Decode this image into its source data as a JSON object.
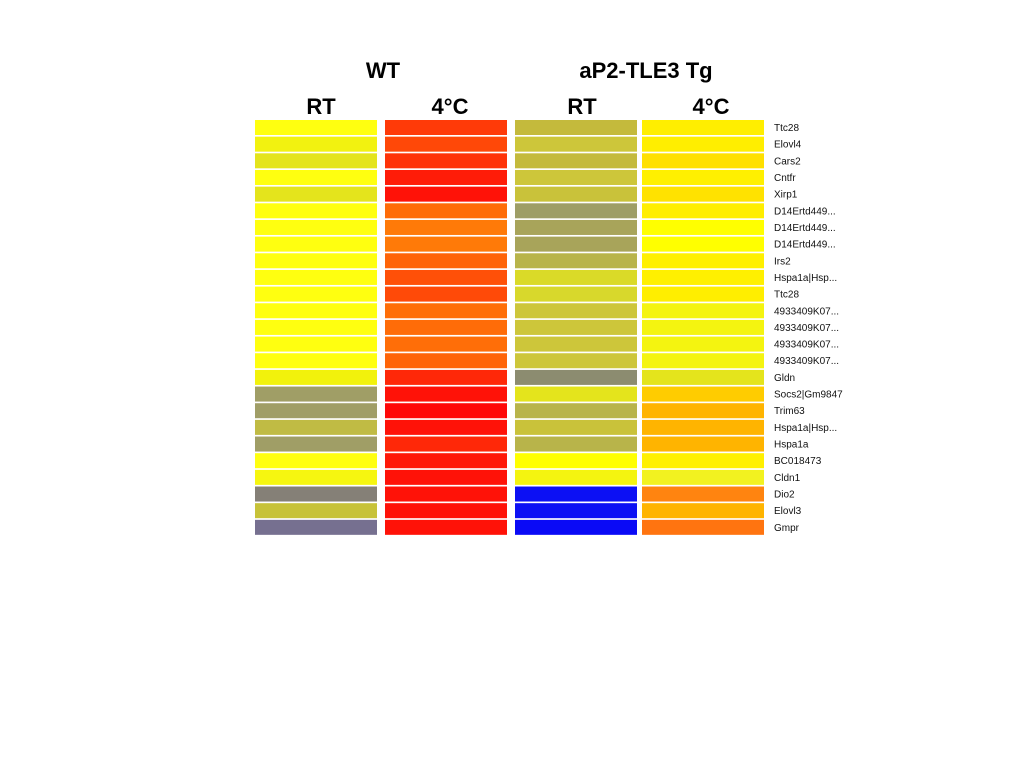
{
  "chart_data": {
    "type": "heatmap",
    "groups": [
      {
        "label": "WT",
        "columns": [
          0,
          1
        ]
      },
      {
        "label": "aP2-TLE3 Tg",
        "columns": [
          2,
          3
        ]
      }
    ],
    "columns": [
      "RT",
      "4°C",
      "RT",
      "4°C"
    ],
    "rows": [
      "Ttc28",
      "Elovl4",
      "Cars2",
      "Cntfr",
      "Xirp1",
      "D14Ertd449...",
      "D14Ertd449...",
      "D14Ertd449...",
      "Irs2",
      "Hspa1a|Hsp...",
      "Ttc28",
      "4933409K07...",
      "4933409K07...",
      "4933409K07...",
      "4933409K07...",
      "Gldn",
      "Socs2|Gm9847",
      "Trim63",
      "Hspa1a|Hsp...",
      "Hspa1a",
      "BC018473",
      "Cldn1",
      "Dio2",
      "Elovl3",
      "Gmpr"
    ],
    "cell_colors": [
      [
        "#ffff10",
        "#ff3a08",
        "#c4ba3c",
        "#ffee00"
      ],
      [
        "#f2f210",
        "#ff4808",
        "#cdc63a",
        "#ffee00"
      ],
      [
        "#e4e41c",
        "#ff3308",
        "#c4ba3c",
        "#ffe000"
      ],
      [
        "#ffff10",
        "#ff1c08",
        "#cdc63a",
        "#fff000"
      ],
      [
        "#e4e41c",
        "#ff1208",
        "#c9c23a",
        "#ffe200"
      ],
      [
        "#ffff10",
        "#ff6c08",
        "#9e9e66",
        "#ffee00"
      ],
      [
        "#ffff10",
        "#ff7a08",
        "#a8a45a",
        "#ffff00"
      ],
      [
        "#ffff10",
        "#ff7a08",
        "#a8a45a",
        "#ffff00"
      ],
      [
        "#ffff10",
        "#ff6408",
        "#b8b44a",
        "#fff000"
      ],
      [
        "#ffff10",
        "#ff5008",
        "#dada28",
        "#fff000"
      ],
      [
        "#ffff10",
        "#ff4a08",
        "#d8d82c",
        "#ffee00"
      ],
      [
        "#ffff10",
        "#ff6e08",
        "#cdc63a",
        "#f4f410"
      ],
      [
        "#ffff10",
        "#ff6c08",
        "#cdc63a",
        "#f4f410"
      ],
      [
        "#ffff10",
        "#ff6e08",
        "#cdc63a",
        "#f4f410"
      ],
      [
        "#ffff10",
        "#ff6408",
        "#cdc63a",
        "#f4f410"
      ],
      [
        "#f2f20c",
        "#ff2808",
        "#8c8c70",
        "#e4e41c"
      ],
      [
        "#a09e66",
        "#ff1208",
        "#e4e41c",
        "#ffcc00"
      ],
      [
        "#a09e66",
        "#ff0808",
        "#b8b44a",
        "#ffb400"
      ],
      [
        "#c0bb44",
        "#ff1208",
        "#c9c23a",
        "#ffb400"
      ],
      [
        "#a09e66",
        "#ff2808",
        "#b8b44a",
        "#ffb400"
      ],
      [
        "#ffff10",
        "#ff1808",
        "#ffff00",
        "#fff000"
      ],
      [
        "#f6f610",
        "#ff1208",
        "#f4f410",
        "#f2f220"
      ],
      [
        "#858077",
        "#ff1208",
        "#0c10f4",
        "#ff8410"
      ],
      [
        "#c7c238",
        "#ff1208",
        "#0c10f4",
        "#ffb400"
      ],
      [
        "#767090",
        "#ff1208",
        "#0a0af6",
        "#ff7410"
      ]
    ]
  }
}
